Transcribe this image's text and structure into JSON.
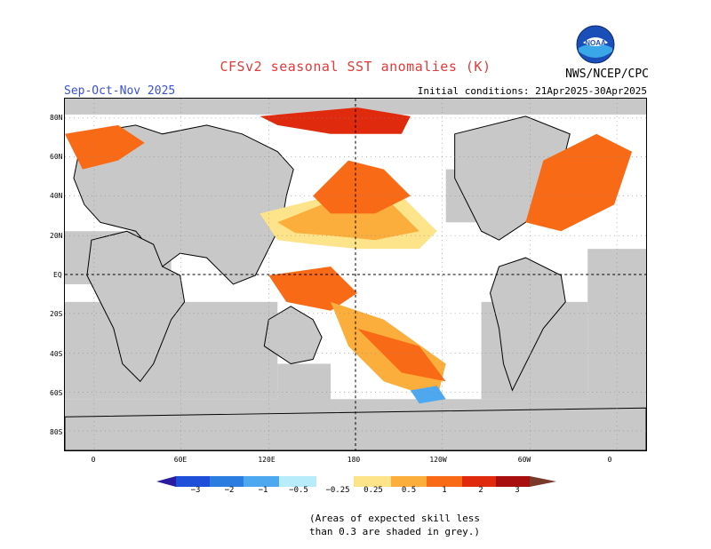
{
  "title": "CFSv2 seasonal SST anomalies (K)",
  "period": "Sep-Oct-Nov 2025",
  "initial_conditions": "Initial conditions: 21Apr2025-30Apr2025",
  "org": "NWS/NCEP/CPC",
  "logo": {
    "text": "NOAA",
    "icon": "noaa-logo-icon"
  },
  "lat_labels": [
    "80N",
    "60N",
    "40N",
    "20N",
    "EQ",
    "20S",
    "40S",
    "60S",
    "80S"
  ],
  "lon_labels": [
    "0",
    "60E",
    "120E",
    "180",
    "120W",
    "60W",
    "0"
  ],
  "colorbar": {
    "labels": [
      "−3",
      "−2",
      "−1",
      "−0.5",
      "−0.25",
      "0.25",
      "0.5",
      "1",
      "2",
      "3"
    ],
    "colors": [
      "#2a1ca0",
      "#1e4fd8",
      "#2b7ee0",
      "#4ea8f0",
      "#b8ecfa",
      "#ffffff",
      "#fde38a",
      "#fcae3c",
      "#f96a16",
      "#e02a0e",
      "#a80e0e",
      "#7a3a2a"
    ]
  },
  "note_line1": "(Areas of expected skill less",
  "note_line2": "than 0.3 are shaded in grey.)",
  "colors": {
    "skill_grey": "#c8c8c8",
    "ocean": "#ffffff",
    "coast": "#000000"
  }
}
